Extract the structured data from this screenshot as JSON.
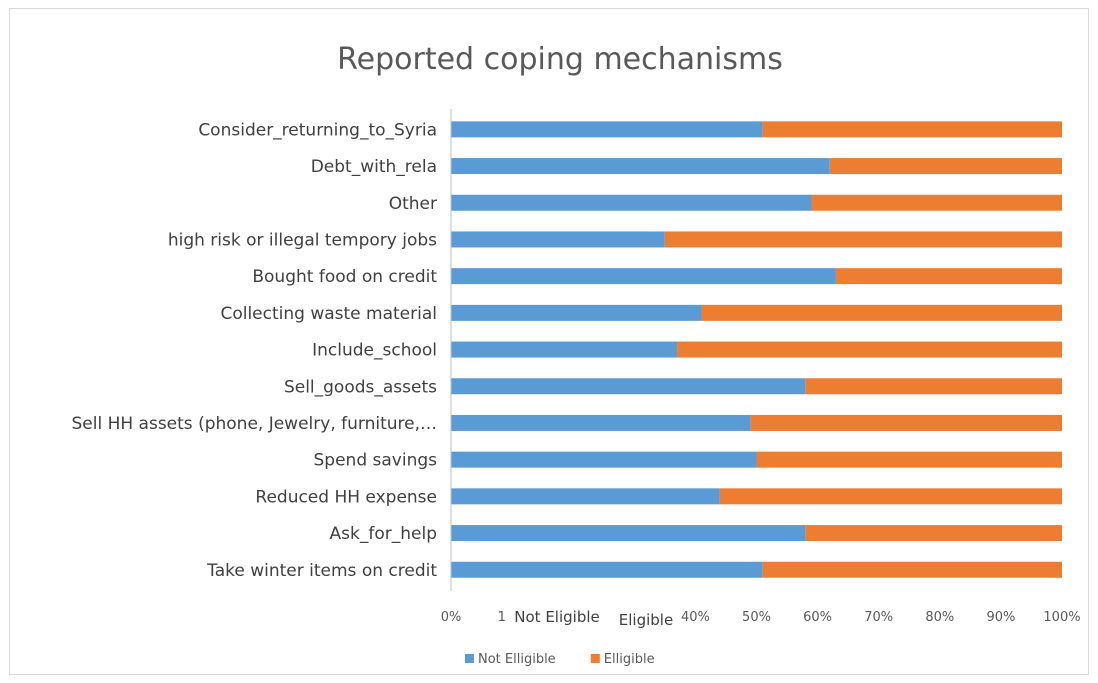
{
  "colors": {
    "not_eligible": "#5b9bd5",
    "eligible": "#ed7d31",
    "axis": "#bfbfbf",
    "text": "#404040"
  },
  "chart_data": {
    "type": "bar",
    "orientation": "horizontal",
    "stacked": "percent",
    "title": "Reported coping mechanisms",
    "categories": [
      "Consider_returning_to_Syria",
      "Debt_with_rela",
      "Other",
      "high risk or illegal tempory jobs",
      "Bought food on credit",
      "Collecting waste material",
      "Include_school",
      "Sell_goods_assets",
      "Sell HH assets (phone, Jewelry, furniture,…",
      "Spend savings",
      "Reduced HH expense",
      "Ask_for_help",
      "Take winter items on credit"
    ],
    "series": [
      {
        "name": "Not Elligible",
        "values": [
          51,
          62,
          59,
          35,
          63,
          41,
          37,
          58,
          49,
          50,
          44,
          58,
          51
        ]
      },
      {
        "name": "Elligible",
        "values": [
          49,
          38,
          41,
          65,
          37,
          59,
          63,
          42,
          51,
          50,
          56,
          42,
          49
        ]
      }
    ],
    "xlim": [
      0,
      100
    ],
    "x_ticks": [
      "0%",
      "10%",
      "20%",
      "30%",
      "40%",
      "50%",
      "60%",
      "70%",
      "80%",
      "90%",
      "100%"
    ],
    "legend_position": "bottom",
    "overlay_labels": [
      "Not Eligible",
      "Eligible"
    ],
    "grid": false
  }
}
